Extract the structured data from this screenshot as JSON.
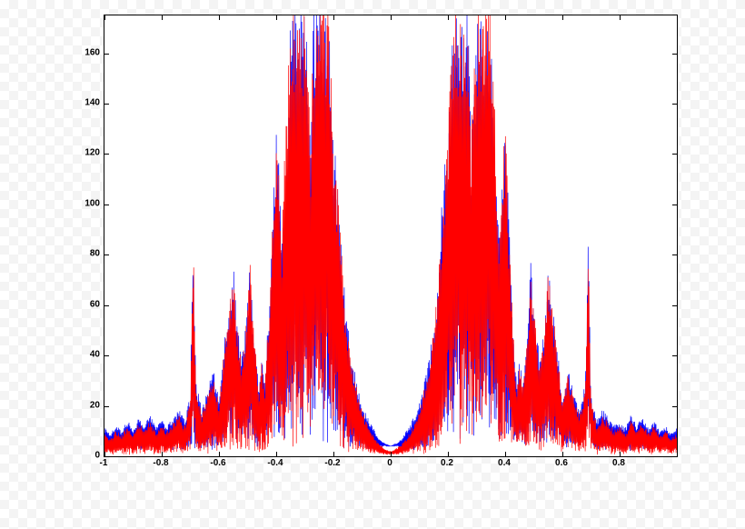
{
  "chart": {
    "type": "spectrum-line",
    "background_color": "#ffffff",
    "axis_color": "#000000",
    "tick_font_size": 10,
    "tick_font_weight": "bold",
    "xlim": [
      -1,
      1
    ],
    "ylim": [
      0,
      175
    ],
    "x_ticks": [
      -1,
      -0.8,
      -0.6,
      -0.4,
      -0.2,
      0,
      0.2,
      0.4,
      0.6,
      0.8
    ],
    "y_ticks": [
      0,
      20,
      40,
      60,
      80,
      100,
      120,
      140,
      160
    ],
    "series": [
      {
        "name": "blue",
        "color": "#0000ff",
        "stroke_width": 0.7,
        "envelope": [
          [
            -1.0,
            11
          ],
          [
            -0.98,
            9
          ],
          [
            -0.96,
            12
          ],
          [
            -0.94,
            10
          ],
          [
            -0.92,
            14
          ],
          [
            -0.9,
            11
          ],
          [
            -0.88,
            15
          ],
          [
            -0.86,
            12
          ],
          [
            -0.84,
            16
          ],
          [
            -0.82,
            11
          ],
          [
            -0.8,
            14
          ],
          [
            -0.78,
            12
          ],
          [
            -0.76,
            15
          ],
          [
            -0.74,
            18
          ],
          [
            -0.72,
            14
          ],
          [
            -0.7,
            24
          ],
          [
            -0.69,
            85
          ],
          [
            -0.68,
            29
          ],
          [
            -0.66,
            18
          ],
          [
            -0.64,
            26
          ],
          [
            -0.62,
            34
          ],
          [
            -0.6,
            22
          ],
          [
            -0.58,
            46
          ],
          [
            -0.56,
            62
          ],
          [
            -0.55,
            74
          ],
          [
            -0.54,
            55
          ],
          [
            -0.52,
            38
          ],
          [
            -0.5,
            60
          ],
          [
            -0.49,
            78
          ],
          [
            -0.48,
            52
          ],
          [
            -0.46,
            28
          ],
          [
            -0.45,
            40
          ],
          [
            -0.44,
            28
          ],
          [
            -0.42,
            70
          ],
          [
            -0.4,
            133
          ],
          [
            -0.39,
            110
          ],
          [
            -0.38,
            88
          ],
          [
            -0.36,
            120
          ],
          [
            -0.35,
            175
          ],
          [
            -0.3,
            175
          ],
          [
            -0.28,
            122
          ],
          [
            -0.27,
            175
          ],
          [
            -0.22,
            175
          ],
          [
            -0.2,
            126
          ],
          [
            -0.18,
            100
          ],
          [
            -0.16,
            62
          ],
          [
            -0.14,
            42
          ],
          [
            -0.12,
            30
          ],
          [
            -0.1,
            20
          ],
          [
            -0.08,
            15
          ],
          [
            -0.06,
            11
          ],
          [
            -0.04,
            7
          ],
          [
            -0.02,
            5
          ],
          [
            0.0,
            4
          ],
          [
            0.02,
            5
          ],
          [
            0.04,
            7
          ],
          [
            0.06,
            11
          ],
          [
            0.08,
            15
          ],
          [
            0.1,
            20
          ],
          [
            0.12,
            30
          ],
          [
            0.14,
            42
          ],
          [
            0.16,
            62
          ],
          [
            0.18,
            100
          ],
          [
            0.2,
            126
          ],
          [
            0.22,
            175
          ],
          [
            0.27,
            175
          ],
          [
            0.28,
            122
          ],
          [
            0.3,
            175
          ],
          [
            0.35,
            175
          ],
          [
            0.36,
            120
          ],
          [
            0.38,
            88
          ],
          [
            0.39,
            110
          ],
          [
            0.4,
            133
          ],
          [
            0.42,
            70
          ],
          [
            0.44,
            28
          ],
          [
            0.45,
            40
          ],
          [
            0.46,
            28
          ],
          [
            0.48,
            52
          ],
          [
            0.49,
            78
          ],
          [
            0.5,
            60
          ],
          [
            0.52,
            38
          ],
          [
            0.54,
            55
          ],
          [
            0.55,
            74
          ],
          [
            0.56,
            62
          ],
          [
            0.58,
            46
          ],
          [
            0.6,
            22
          ],
          [
            0.62,
            34
          ],
          [
            0.64,
            26
          ],
          [
            0.66,
            18
          ],
          [
            0.68,
            29
          ],
          [
            0.69,
            85
          ],
          [
            0.7,
            24
          ],
          [
            0.72,
            14
          ],
          [
            0.74,
            18
          ],
          [
            0.76,
            15
          ],
          [
            0.78,
            12
          ],
          [
            0.8,
            14
          ],
          [
            0.82,
            11
          ],
          [
            0.84,
            16
          ],
          [
            0.86,
            12
          ],
          [
            0.88,
            15
          ],
          [
            0.9,
            11
          ],
          [
            0.92,
            14
          ],
          [
            0.94,
            10
          ],
          [
            0.96,
            12
          ],
          [
            0.98,
            9
          ],
          [
            1.0,
            11
          ]
        ],
        "floor": [
          [
            -1.0,
            2
          ],
          [
            -0.5,
            2
          ],
          [
            -0.06,
            2
          ],
          [
            -0.02,
            4
          ],
          [
            0.02,
            4
          ],
          [
            0.06,
            2
          ],
          [
            0.5,
            2
          ],
          [
            1.0,
            2
          ]
        ],
        "noise_amplitude": 0.8
      },
      {
        "name": "red",
        "color": "#ff0000",
        "stroke_width": 0.7,
        "envelope": [
          [
            -1.0,
            9
          ],
          [
            -0.98,
            7
          ],
          [
            -0.96,
            10
          ],
          [
            -0.94,
            8
          ],
          [
            -0.92,
            12
          ],
          [
            -0.9,
            9
          ],
          [
            -0.88,
            13
          ],
          [
            -0.86,
            10
          ],
          [
            -0.84,
            14
          ],
          [
            -0.82,
            9
          ],
          [
            -0.8,
            12
          ],
          [
            -0.78,
            10
          ],
          [
            -0.76,
            13
          ],
          [
            -0.74,
            16
          ],
          [
            -0.72,
            12
          ],
          [
            -0.7,
            22
          ],
          [
            -0.69,
            82
          ],
          [
            -0.68,
            27
          ],
          [
            -0.66,
            16
          ],
          [
            -0.64,
            24
          ],
          [
            -0.62,
            32
          ],
          [
            -0.6,
            20
          ],
          [
            -0.58,
            44
          ],
          [
            -0.56,
            60
          ],
          [
            -0.55,
            72
          ],
          [
            -0.54,
            53
          ],
          [
            -0.52,
            36
          ],
          [
            -0.5,
            58
          ],
          [
            -0.49,
            76
          ],
          [
            -0.48,
            50
          ],
          [
            -0.46,
            26
          ],
          [
            -0.45,
            38
          ],
          [
            -0.44,
            26
          ],
          [
            -0.42,
            68
          ],
          [
            -0.4,
            130
          ],
          [
            -0.39,
            108
          ],
          [
            -0.38,
            86
          ],
          [
            -0.36,
            149
          ],
          [
            -0.35,
            175
          ],
          [
            -0.3,
            175
          ],
          [
            -0.28,
            120
          ],
          [
            -0.27,
            175
          ],
          [
            -0.22,
            175
          ],
          [
            -0.2,
            124
          ],
          [
            -0.18,
            98
          ],
          [
            -0.16,
            60
          ],
          [
            -0.14,
            40
          ],
          [
            -0.12,
            28
          ],
          [
            -0.1,
            18
          ],
          [
            -0.08,
            12
          ],
          [
            -0.06,
            8
          ],
          [
            -0.04,
            5
          ],
          [
            -0.02,
            3
          ],
          [
            0.0,
            2
          ],
          [
            0.02,
            3
          ],
          [
            0.04,
            5
          ],
          [
            0.06,
            8
          ],
          [
            0.08,
            12
          ],
          [
            0.1,
            18
          ],
          [
            0.12,
            28
          ],
          [
            0.14,
            40
          ],
          [
            0.16,
            60
          ],
          [
            0.18,
            98
          ],
          [
            0.2,
            124
          ],
          [
            0.22,
            175
          ],
          [
            0.27,
            175
          ],
          [
            0.28,
            120
          ],
          [
            0.3,
            175
          ],
          [
            0.35,
            175
          ],
          [
            0.36,
            149
          ],
          [
            0.38,
            86
          ],
          [
            0.39,
            108
          ],
          [
            0.4,
            130
          ],
          [
            0.42,
            68
          ],
          [
            0.44,
            26
          ],
          [
            0.45,
            38
          ],
          [
            0.46,
            26
          ],
          [
            0.48,
            50
          ],
          [
            0.49,
            76
          ],
          [
            0.5,
            58
          ],
          [
            0.52,
            36
          ],
          [
            0.54,
            53
          ],
          [
            0.55,
            72
          ],
          [
            0.56,
            60
          ],
          [
            0.58,
            44
          ],
          [
            0.6,
            20
          ],
          [
            0.62,
            32
          ],
          [
            0.64,
            24
          ],
          [
            0.66,
            16
          ],
          [
            0.68,
            27
          ],
          [
            0.69,
            82
          ],
          [
            0.7,
            22
          ],
          [
            0.72,
            12
          ],
          [
            0.74,
            16
          ],
          [
            0.76,
            13
          ],
          [
            0.78,
            10
          ],
          [
            0.8,
            12
          ],
          [
            0.82,
            9
          ],
          [
            0.84,
            14
          ],
          [
            0.86,
            10
          ],
          [
            0.88,
            13
          ],
          [
            0.9,
            9
          ],
          [
            0.92,
            12
          ],
          [
            0.94,
            8
          ],
          [
            0.96,
            10
          ],
          [
            0.98,
            7
          ],
          [
            1.0,
            9
          ]
        ],
        "floor": [
          [
            -1.0,
            0.5
          ],
          [
            -0.5,
            0.5
          ],
          [
            -0.06,
            0.5
          ],
          [
            -0.02,
            0.5
          ],
          [
            0.02,
            0.5
          ],
          [
            0.06,
            0.5
          ],
          [
            0.5,
            0.5
          ],
          [
            1.0,
            0.5
          ]
        ],
        "noise_amplitude": 0.8
      }
    ]
  }
}
